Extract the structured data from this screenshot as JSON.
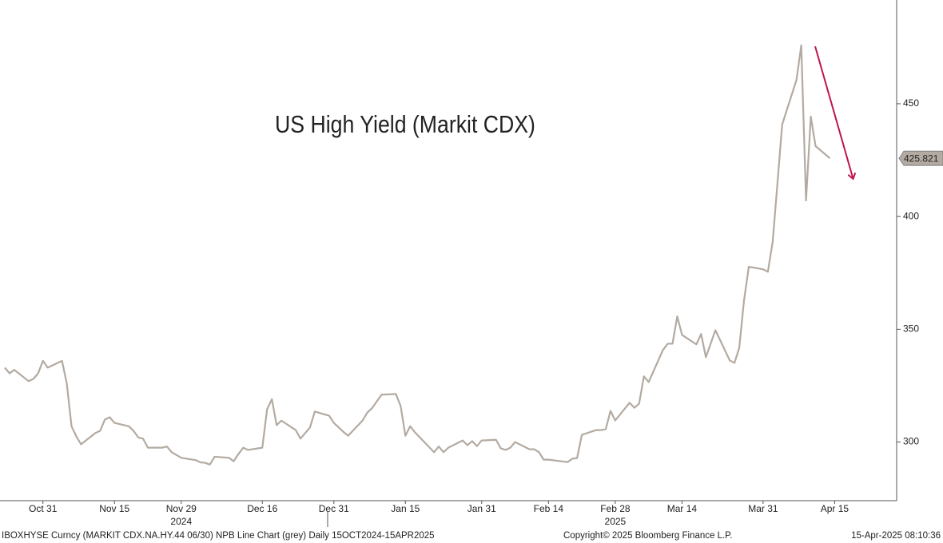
{
  "chart_data": {
    "type": "line",
    "title": "US High Yield (Markit CDX)",
    "x": [
      "2024-10-23",
      "2024-10-24",
      "2024-10-25",
      "2024-10-28",
      "2024-10-29",
      "2024-10-30",
      "2024-10-31",
      "2024-11-01",
      "2024-11-04",
      "2024-11-05",
      "2024-11-06",
      "2024-11-07",
      "2024-11-08",
      "2024-11-11",
      "2024-11-12",
      "2024-11-13",
      "2024-11-14",
      "2024-11-15",
      "2024-11-18",
      "2024-11-19",
      "2024-11-20",
      "2024-11-21",
      "2024-11-22",
      "2024-11-25",
      "2024-11-26",
      "2024-11-27",
      "2024-11-29",
      "2024-12-02",
      "2024-12-03",
      "2024-12-04",
      "2024-12-05",
      "2024-12-06",
      "2024-12-09",
      "2024-12-10",
      "2024-12-11",
      "2024-12-12",
      "2024-12-13",
      "2024-12-16",
      "2024-12-17",
      "2024-12-18",
      "2024-12-19",
      "2024-12-20",
      "2024-12-23",
      "2024-12-24",
      "2024-12-26",
      "2024-12-27",
      "2024-12-30",
      "2024-12-31",
      "2025-01-02",
      "2025-01-03",
      "2025-01-06",
      "2025-01-07",
      "2025-01-08",
      "2025-01-10",
      "2025-01-13",
      "2025-01-14",
      "2025-01-15",
      "2025-01-16",
      "2025-01-17",
      "2025-01-21",
      "2025-01-22",
      "2025-01-23",
      "2025-01-24",
      "2025-01-27",
      "2025-01-28",
      "2025-01-29",
      "2025-01-30",
      "2025-01-31",
      "2025-02-03",
      "2025-02-04",
      "2025-02-05",
      "2025-02-06",
      "2025-02-07",
      "2025-02-10",
      "2025-02-11",
      "2025-02-12",
      "2025-02-13",
      "2025-02-14",
      "2025-02-18",
      "2025-02-19",
      "2025-02-20",
      "2025-02-21",
      "2025-02-24",
      "2025-02-25",
      "2025-02-26",
      "2025-02-27",
      "2025-02-28",
      "2025-03-03",
      "2025-03-04",
      "2025-03-05",
      "2025-03-06",
      "2025-03-07",
      "2025-03-10",
      "2025-03-11",
      "2025-03-12",
      "2025-03-13",
      "2025-03-14",
      "2025-03-17",
      "2025-03-18",
      "2025-03-19",
      "2025-03-20",
      "2025-03-21",
      "2025-03-24",
      "2025-03-25",
      "2025-03-26",
      "2025-03-27",
      "2025-03-28",
      "2025-03-31",
      "2025-04-01",
      "2025-04-02",
      "2025-04-03",
      "2025-04-04",
      "2025-04-07",
      "2025-04-08",
      "2025-04-09",
      "2025-04-10",
      "2025-04-11",
      "2025-04-14"
    ],
    "series": [
      {
        "color": "#b3aaa1",
        "values": [
          333,
          330.5,
          332,
          327,
          328,
          330.5,
          336,
          333,
          336,
          326,
          307,
          302.5,
          299,
          304,
          305,
          310,
          311,
          308.5,
          307,
          305,
          302,
          301.5,
          297.5,
          297.5,
          298,
          295.5,
          293,
          292,
          291,
          290.8,
          290,
          293.5,
          293,
          291.5,
          294.7,
          297.5,
          296.5,
          297.5,
          314.5,
          319,
          307.5,
          309.5,
          305.3,
          301.5,
          306.5,
          313.5,
          311.7,
          308.5,
          304.5,
          302.8,
          309.5,
          313,
          315,
          321,
          321.3,
          316,
          302.8,
          307,
          304.3,
          295.5,
          298,
          295.5,
          297.5,
          300.7,
          298.6,
          300.4,
          298.2,
          300.7,
          301,
          297.2,
          296.5,
          297.5,
          300,
          296.8,
          296.8,
          295.5,
          292.2,
          292.2,
          291.1,
          292.6,
          292.9,
          303.2,
          305.3,
          305.3,
          305.7,
          313.8,
          309.6,
          317.4,
          315.2,
          317,
          329.1,
          326.6,
          340.8,
          343.6,
          343.6,
          355.7,
          347.5,
          343.3,
          347.9,
          337.6,
          343.6,
          349.6,
          336.2,
          335.1,
          341.8,
          362.8,
          377.7,
          376.6,
          375.5,
          388.7,
          414.5,
          440.8,
          460.6,
          475.9,
          407.1,
          444.3,
          431.2,
          425.821
        ]
      }
    ],
    "xlim": [
      "2024-10-22",
      "2025-04-28"
    ],
    "xticks": [
      {
        "value": "2024-10-31",
        "label": "Oct 31"
      },
      {
        "value": "2024-11-15",
        "label": "Nov 15"
      },
      {
        "value": "2024-11-29",
        "label": "Nov 29"
      },
      {
        "value": "2024-12-16",
        "label": "Dec 16"
      },
      {
        "value": "2024-12-31",
        "label": "Dec 31"
      },
      {
        "value": "2025-01-15",
        "label": "Jan 15"
      },
      {
        "value": "2025-01-31",
        "label": "Jan 31"
      },
      {
        "value": "2025-02-14",
        "label": "Feb 14"
      },
      {
        "value": "2025-02-28",
        "label": "Feb 28"
      },
      {
        "value": "2025-03-14",
        "label": "Mar 14"
      },
      {
        "value": "2025-03-31",
        "label": "Mar 31"
      },
      {
        "value": "2025-04-15",
        "label": "Apr 15"
      }
    ],
    "year_labels": [
      {
        "value": "2024-11-29",
        "label": "2024"
      },
      {
        "value": "2025-02-28",
        "label": "2025"
      }
    ],
    "ylim": [
      274,
      496
    ],
    "yticks": [
      300,
      350,
      400,
      450
    ],
    "footer_left": "IBOXHYSE Curncy (MARKIT CDX.NA.HY.44 06/30) NPB Line Chart (grey)  Daily 15OCT2024-15APR2025",
    "footer_center": "Copyright© 2025 Bloomberg Finance L.P.",
    "footer_right": "15-Apr-2025 08:10:36"
  }
}
